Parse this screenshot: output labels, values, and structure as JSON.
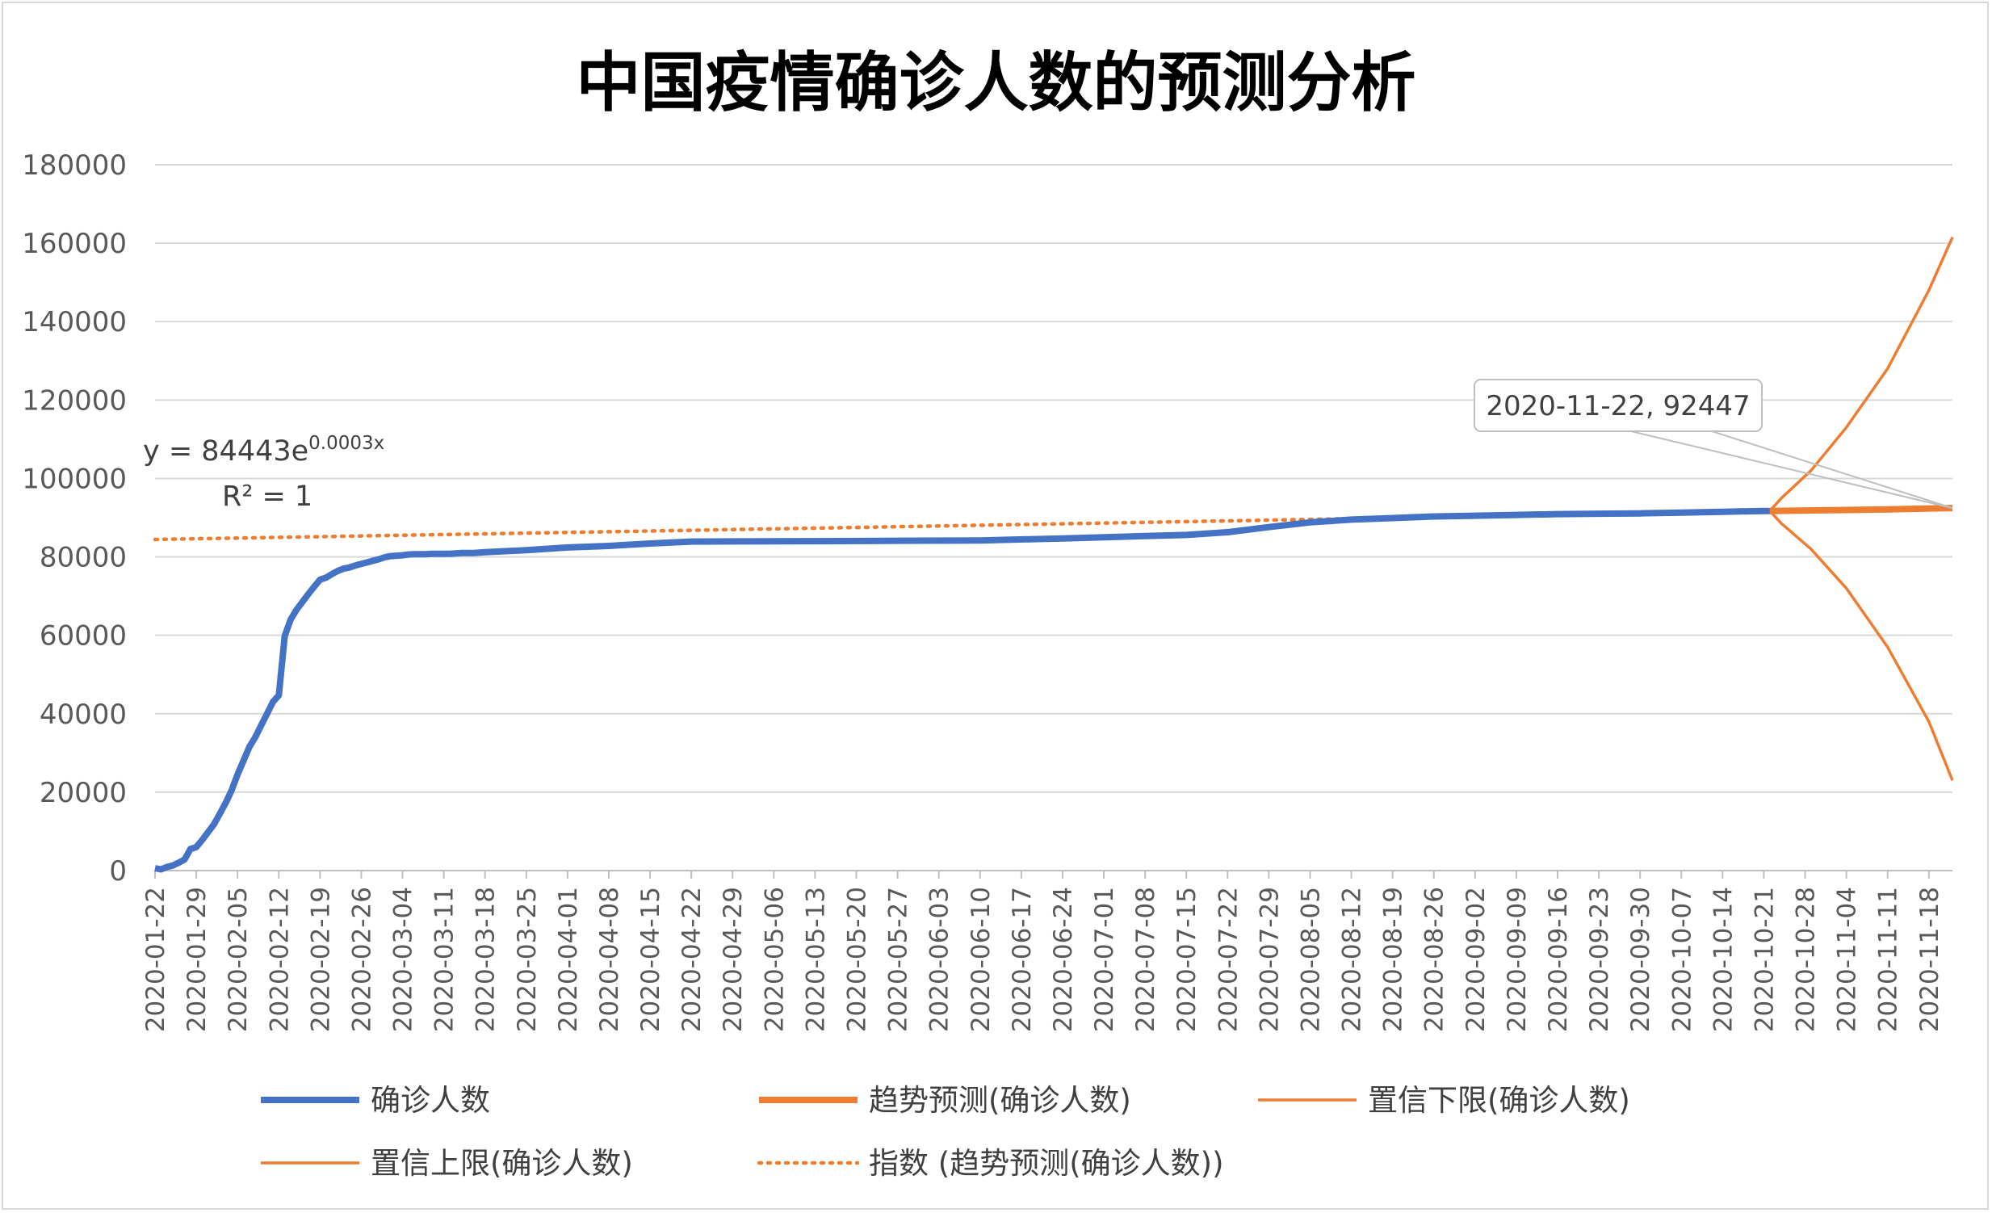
{
  "chart_data": {
    "type": "line",
    "title": "中国疫情确诊人数的预测分析",
    "ylim": [
      0,
      180000
    ],
    "y_ticks": [
      "0",
      "20000",
      "40000",
      "60000",
      "80000",
      "100000",
      "120000",
      "140000",
      "160000",
      "180000"
    ],
    "x_range": [
      "2020-01-22",
      "2020-11-22"
    ],
    "x_ticks": [
      "2020-01-22",
      "2020-01-29",
      "2020-02-05",
      "2020-02-12",
      "2020-02-19",
      "2020-02-26",
      "2020-03-04",
      "2020-03-11",
      "2020-03-18",
      "2020-03-25",
      "2020-04-01",
      "2020-04-08",
      "2020-04-15",
      "2020-04-22",
      "2020-04-29",
      "2020-05-06",
      "2020-05-13",
      "2020-05-20",
      "2020-05-27",
      "2020-06-03",
      "2020-06-10",
      "2020-06-17",
      "2020-06-24",
      "2020-07-01",
      "2020-07-08",
      "2020-07-15",
      "2020-07-22",
      "2020-07-29",
      "2020-08-05",
      "2020-08-12",
      "2020-08-19",
      "2020-08-26",
      "2020-09-02",
      "2020-09-09",
      "2020-09-16",
      "2020-09-23",
      "2020-09-30",
      "2020-10-07",
      "2020-10-14",
      "2020-10-21",
      "2020-10-28",
      "2020-11-04",
      "2020-11-11",
      "2020-11-18"
    ],
    "grid": true,
    "legend_position": "bottom",
    "colors": {
      "actual": "#4472c4",
      "forecast": "#ed7d31",
      "gridline": "#d9d9d9",
      "axis": "#bfbfbf"
    },
    "series": [
      {
        "name": "确诊人数",
        "style": "thick-solid",
        "color": "#4472c4",
        "points": [
          [
            "2020-01-22",
            600
          ],
          [
            "2020-01-23",
            300
          ],
          [
            "2020-01-24",
            900
          ],
          [
            "2020-01-25",
            1300
          ],
          [
            "2020-01-26",
            2000
          ],
          [
            "2020-01-27",
            2800
          ],
          [
            "2020-01-28",
            5500
          ],
          [
            "2020-01-29",
            6000
          ],
          [
            "2020-01-30",
            7800
          ],
          [
            "2020-01-31",
            9800
          ],
          [
            "2020-02-01",
            11800
          ],
          [
            "2020-02-02",
            14500
          ],
          [
            "2020-02-03",
            17300
          ],
          [
            "2020-02-04",
            20500
          ],
          [
            "2020-02-05",
            24500
          ],
          [
            "2020-02-06",
            28000
          ],
          [
            "2020-02-07",
            31500
          ],
          [
            "2020-02-08",
            34000
          ],
          [
            "2020-02-09",
            37000
          ],
          [
            "2020-02-10",
            40000
          ],
          [
            "2020-02-11",
            43000
          ],
          [
            "2020-02-12",
            44700
          ],
          [
            "2020-02-13",
            59800
          ],
          [
            "2020-02-14",
            64000
          ],
          [
            "2020-02-15",
            66500
          ],
          [
            "2020-02-16",
            68500
          ],
          [
            "2020-02-17",
            70500
          ],
          [
            "2020-02-18",
            72400
          ],
          [
            "2020-02-19",
            74200
          ],
          [
            "2020-02-20",
            74700
          ],
          [
            "2020-02-21",
            75600
          ],
          [
            "2020-02-22",
            76400
          ],
          [
            "2020-02-23",
            77000
          ],
          [
            "2020-02-24",
            77300
          ],
          [
            "2020-02-25",
            77800
          ],
          [
            "2020-02-26",
            78200
          ],
          [
            "2020-02-27",
            78600
          ],
          [
            "2020-02-28",
            79000
          ],
          [
            "2020-02-29",
            79400
          ],
          [
            "2020-03-01",
            79900
          ],
          [
            "2020-03-02",
            80200
          ],
          [
            "2020-03-03",
            80300
          ],
          [
            "2020-03-04",
            80400
          ],
          [
            "2020-03-05",
            80600
          ],
          [
            "2020-03-06",
            80700
          ],
          [
            "2020-03-07",
            80700
          ],
          [
            "2020-03-08",
            80700
          ],
          [
            "2020-03-09",
            80800
          ],
          [
            "2020-03-10",
            80800
          ],
          [
            "2020-03-11",
            80800
          ],
          [
            "2020-03-12",
            80800
          ],
          [
            "2020-03-13",
            80900
          ],
          [
            "2020-03-14",
            81000
          ],
          [
            "2020-03-15",
            81000
          ],
          [
            "2020-03-16",
            81000
          ],
          [
            "2020-03-17",
            81100
          ],
          [
            "2020-03-18",
            81200
          ],
          [
            "2020-03-25",
            81700
          ],
          [
            "2020-04-01",
            82400
          ],
          [
            "2020-04-08",
            82800
          ],
          [
            "2020-04-15",
            83400
          ],
          [
            "2020-04-22",
            83900
          ],
          [
            "2020-04-29",
            83950
          ],
          [
            "2020-05-13",
            84000
          ],
          [
            "2020-05-27",
            84100
          ],
          [
            "2020-06-10",
            84200
          ],
          [
            "2020-06-24",
            84700
          ],
          [
            "2020-07-08",
            85300
          ],
          [
            "2020-07-15",
            85600
          ],
          [
            "2020-07-22",
            86300
          ],
          [
            "2020-07-29",
            87600
          ],
          [
            "2020-08-05",
            88800
          ],
          [
            "2020-08-12",
            89500
          ],
          [
            "2020-08-19",
            89900
          ],
          [
            "2020-08-26",
            90300
          ],
          [
            "2020-09-02",
            90500
          ],
          [
            "2020-09-09",
            90700
          ],
          [
            "2020-09-16",
            90900
          ],
          [
            "2020-09-23",
            91000
          ],
          [
            "2020-09-30",
            91100
          ],
          [
            "2020-10-07",
            91300
          ],
          [
            "2020-10-14",
            91500
          ],
          [
            "2020-10-21",
            91700
          ],
          [
            "2020-10-22",
            91700
          ]
        ]
      },
      {
        "name": "趋势预测(确诊人数)",
        "style": "thick-solid",
        "color": "#ed7d31",
        "points": [
          [
            "2020-10-22",
            91700
          ],
          [
            "2020-11-01",
            91900
          ],
          [
            "2020-11-11",
            92100
          ],
          [
            "2020-11-22",
            92447
          ]
        ]
      },
      {
        "name": "置信下限(确诊人数)",
        "style": "thin-solid",
        "color": "#ed7d31",
        "points": [
          [
            "2020-10-22",
            91700
          ],
          [
            "2020-10-24",
            88500
          ],
          [
            "2020-10-29",
            82000
          ],
          [
            "2020-11-04",
            72000
          ],
          [
            "2020-11-11",
            57000
          ],
          [
            "2020-11-18",
            38000
          ],
          [
            "2020-11-22",
            23000
          ]
        ]
      },
      {
        "name": "置信上限(确诊人数)",
        "style": "thin-solid",
        "color": "#ed7d31",
        "points": [
          [
            "2020-10-22",
            91700
          ],
          [
            "2020-10-24",
            95000
          ],
          [
            "2020-10-29",
            102000
          ],
          [
            "2020-11-04",
            113000
          ],
          [
            "2020-11-11",
            128000
          ],
          [
            "2020-11-18",
            148000
          ],
          [
            "2020-11-22",
            161500
          ]
        ]
      },
      {
        "name": "指数 (趋势预测(确诊人数))",
        "style": "dotted",
        "color": "#ed7d31",
        "trendline": "exponential",
        "coefficient": 84443,
        "rate": 0.0003
      }
    ],
    "annotations": {
      "callout": {
        "text": "2020-11-22, 92447",
        "x": "2020-11-22",
        "y": 92447
      },
      "equation": {
        "base": "y = 84443e",
        "exponent": "0.0003x",
        "r2": "R² = 1"
      }
    }
  }
}
